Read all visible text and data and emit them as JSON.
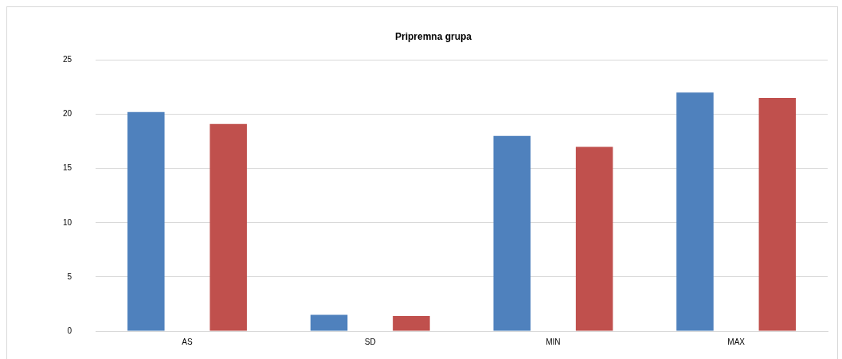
{
  "chart_data": {
    "type": "bar",
    "title": "Pripremna grupa",
    "categories": [
      "AS",
      "SD",
      "MIN",
      "MAX"
    ],
    "series": [
      {
        "color": "#4f81bd",
        "values": [
          20.2,
          1.5,
          18.0,
          22.0
        ]
      },
      {
        "color": "#c0504d",
        "values": [
          19.1,
          1.4,
          17.0,
          21.5
        ]
      }
    ],
    "ylim": [
      0,
      25
    ],
    "yticks": [
      0,
      5,
      10,
      15,
      20,
      25
    ],
    "grid": "y",
    "legend": false
  }
}
